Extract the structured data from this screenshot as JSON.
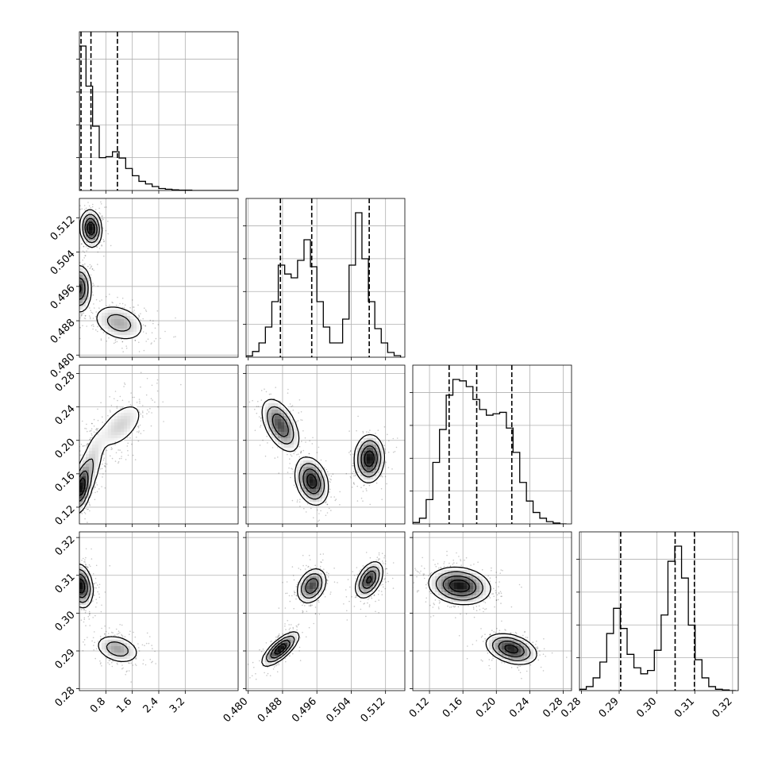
{
  "chart_data": {
    "type": "corner",
    "grid": true,
    "parameters": [
      {
        "range": [
          0.0,
          4.8
        ],
        "ticks": [
          0.8,
          1.6,
          2.4,
          3.2
        ],
        "tick_labels": [
          "0.8",
          "1.6",
          "2.4",
          "3.2"
        ],
        "quantiles": [
          0.05,
          0.35,
          1.15
        ],
        "hist_edges": [
          0.0,
          0.2,
          0.4,
          0.6,
          0.8,
          1.0,
          1.2,
          1.4,
          1.6,
          1.8,
          2.0,
          2.2,
          2.4,
          2.6,
          2.8,
          3.0,
          3.2,
          3.4,
          3.6,
          3.8,
          4.0,
          4.2,
          4.4,
          4.6,
          4.8
        ],
        "hist_counts": [
          440,
          318,
          196,
          100,
          103,
          118,
          99,
          67,
          45,
          28,
          20,
          12,
          6,
          4,
          2,
          1,
          1,
          0,
          0,
          0,
          0,
          0,
          0,
          0
        ]
      },
      {
        "range": [
          0.4795,
          0.5165
        ],
        "ticks": [
          0.48,
          0.488,
          0.496,
          0.504,
          0.512
        ],
        "tick_labels": [
          "0.480",
          "0.488",
          "0.496",
          "0.504",
          "0.512"
        ],
        "quantiles": [
          0.4875,
          0.4948,
          0.5082
        ],
        "hist_edges": [
          0.4795,
          0.481,
          0.4825,
          0.484,
          0.4855,
          0.487,
          0.4885,
          0.49,
          0.4915,
          0.493,
          0.4945,
          0.496,
          0.4975,
          0.499,
          0.5005,
          0.502,
          0.5035,
          0.505,
          0.5065,
          0.508,
          0.5095,
          0.511,
          0.5125,
          0.514,
          0.5155
        ],
        "hist_counts": [
          4,
          18,
          45,
          95,
          175,
          290,
          262,
          250,
          305,
          370,
          285,
          175,
          95,
          45,
          45,
          120,
          290,
          455,
          310,
          175,
          90,
          45,
          15,
          5
        ]
      },
      {
        "range": [
          0.1,
          0.29
        ],
        "ticks": [
          0.12,
          0.16,
          0.2,
          0.24,
          0.28
        ],
        "tick_labels": [
          "0.12",
          "0.16",
          "0.20",
          "0.24",
          "0.28"
        ],
        "quantiles": [
          0.1435,
          0.1765,
          0.2185
        ],
        "hist_edges": [
          0.1,
          0.108,
          0.116,
          0.124,
          0.132,
          0.14,
          0.148,
          0.156,
          0.164,
          0.172,
          0.18,
          0.188,
          0.196,
          0.204,
          0.212,
          0.22,
          0.228,
          0.236,
          0.244,
          0.252,
          0.26,
          0.268,
          0.276,
          0.284
        ],
        "hist_counts": [
          5,
          20,
          85,
          215,
          330,
          450,
          505,
          500,
          480,
          435,
          400,
          380,
          385,
          390,
          335,
          250,
          145,
          80,
          40,
          20,
          8,
          3,
          0
        ]
      },
      {
        "range": [
          0.2795,
          0.3215
        ],
        "ticks": [
          0.28,
          0.29,
          0.3,
          0.31,
          0.32
        ],
        "tick_labels": [
          "0.28",
          "0.29",
          "0.30",
          "0.31",
          "0.32"
        ],
        "quantiles": [
          0.2904,
          0.3048,
          0.3099
        ],
        "hist_edges": [
          0.2795,
          0.2813,
          0.2831,
          0.2849,
          0.2867,
          0.2885,
          0.2903,
          0.2921,
          0.2939,
          0.2957,
          0.2975,
          0.2993,
          0.3011,
          0.3029,
          0.3047,
          0.3065,
          0.3083,
          0.3101,
          0.3119,
          0.3137,
          0.3155,
          0.3173,
          0.3191,
          0.3209
        ],
        "hist_counts": [
          4,
          12,
          38,
          85,
          170,
          245,
          185,
          108,
          68,
          50,
          60,
          120,
          225,
          385,
          430,
          335,
          195,
          92,
          38,
          12,
          4,
          2,
          0
        ]
      }
    ],
    "pairs": [
      {
        "row": 1,
        "col": 0,
        "clusters": [
          {
            "mx": 0.0,
            "my": 0.4955,
            "sx": 0.18,
            "sy": 0.0027,
            "rho": 0.0,
            "w": 0.36
          },
          {
            "mx": 0.35,
            "my": 0.5095,
            "sx": 0.16,
            "sy": 0.0021,
            "rho": -0.1,
            "w": 0.3
          },
          {
            "mx": 1.2,
            "my": 0.4875,
            "sx": 0.42,
            "sy": 0.0023,
            "rho": -0.3,
            "w": 0.34
          }
        ]
      },
      {
        "row": 2,
        "col": 0,
        "clusters": [
          {
            "mx": 0.05,
            "my": 0.143,
            "sx": 0.15,
            "sy": 0.015,
            "rho": 0.4,
            "w": 0.4
          },
          {
            "mx": 0.35,
            "my": 0.17,
            "sx": 0.22,
            "sy": 0.022,
            "rho": 0.5,
            "w": 0.25
          },
          {
            "mx": 1.25,
            "my": 0.218,
            "sx": 0.42,
            "sy": 0.017,
            "rho": 0.55,
            "w": 0.35
          }
        ]
      },
      {
        "row": 2,
        "col": 1,
        "clusters": [
          {
            "mx": 0.4875,
            "my": 0.218,
            "sx": 0.0022,
            "sy": 0.016,
            "rho": -0.5,
            "w": 0.33
          },
          {
            "mx": 0.4948,
            "my": 0.151,
            "sx": 0.0019,
            "sy": 0.014,
            "rho": -0.25,
            "w": 0.34
          },
          {
            "mx": 0.5082,
            "my": 0.178,
            "sx": 0.0017,
            "sy": 0.014,
            "rho": 0.05,
            "w": 0.33
          }
        ]
      },
      {
        "row": 3,
        "col": 0,
        "clusters": [
          {
            "mx": 0.04,
            "my": 0.3072,
            "sx": 0.18,
            "sy": 0.0028,
            "rho": -0.2,
            "w": 0.62
          },
          {
            "mx": 1.15,
            "my": 0.2905,
            "sx": 0.35,
            "sy": 0.002,
            "rho": -0.3,
            "w": 0.38
          }
        ]
      },
      {
        "row": 3,
        "col": 1,
        "clusters": [
          {
            "mx": 0.4875,
            "my": 0.2905,
            "sx": 0.0021,
            "sy": 0.0022,
            "rho": 0.75,
            "w": 0.34
          },
          {
            "mx": 0.4948,
            "my": 0.3072,
            "sx": 0.0017,
            "sy": 0.0023,
            "rho": 0.3,
            "w": 0.33
          },
          {
            "mx": 0.5082,
            "my": 0.3088,
            "sx": 0.0016,
            "sy": 0.0024,
            "rho": 0.45,
            "w": 0.33
          }
        ]
      },
      {
        "row": 3,
        "col": 2,
        "clusters": [
          {
            "mx": 0.156,
            "my": 0.3072,
            "sx": 0.018,
            "sy": 0.0024,
            "rho": -0.15,
            "w": 0.62
          },
          {
            "mx": 0.218,
            "my": 0.2905,
            "sx": 0.015,
            "sy": 0.002,
            "rho": -0.35,
            "w": 0.38
          }
        ]
      }
    ]
  }
}
